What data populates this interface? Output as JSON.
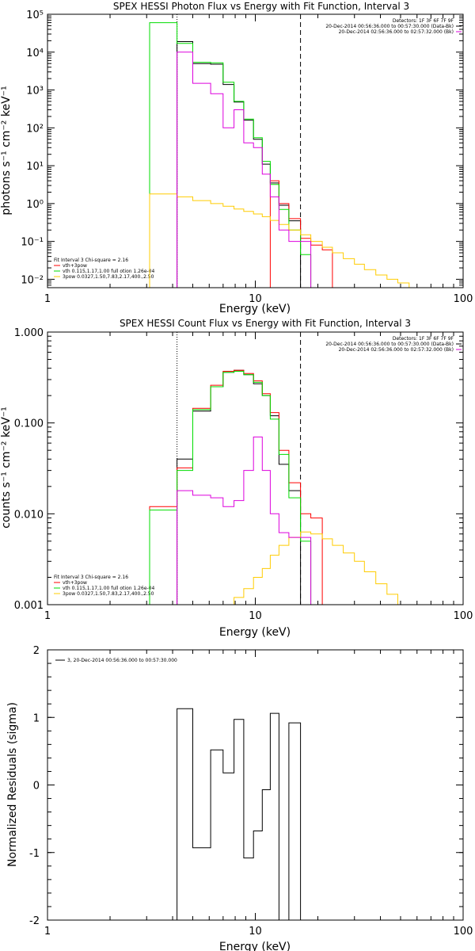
{
  "chart_data": [
    {
      "type": "line",
      "title": "SPEX HESSI Photon Flux vs Energy with Fit Function, Interval 3",
      "xlabel": "Energy (keV)",
      "ylabel": "photons s⁻¹ cm⁻² keV⁻¹",
      "xlog": true,
      "ylog": true,
      "xlim": [
        1,
        100
      ],
      "ylim": [
        0.006,
        100000
      ],
      "xtick_labels": [
        "1",
        "10",
        "100"
      ],
      "ytick_labels": [
        "10⁻²",
        "10⁻¹",
        "10⁰",
        "10¹",
        "10²",
        "10³",
        "10⁴",
        "10⁵"
      ],
      "header_lines": [
        "Detectors: 1F 3F 6F 7F 9F",
        "20-Dec-2014 00:56:36.000 to 00:57:30.000 (Data-Bk)",
        "20-Dec-2014 02:56:36.000 to 02:57:32.000 (Bk)"
      ],
      "fit_lines": [
        "Fit Interval 3   Chi-square = 2.16",
        "vth+3pow",
        "vth 0.115,1.17,1.00  full otion 1.26e-04",
        "3pow 0.0327,1.50,7.83,2.17,400.,2.50"
      ],
      "vlines": [
        {
          "x": 4.2,
          "style": "dotted",
          "color": "#000000"
        },
        {
          "x": 16.5,
          "style": "dashed",
          "color": "#000000"
        }
      ],
      "edges": [
        3.1,
        4.2,
        5.0,
        6.1,
        7.0,
        7.9,
        8.8,
        9.8,
        10.8,
        11.8,
        13.0,
        14.5,
        16.5,
        18.5,
        21.0,
        23.5,
        26.5,
        30.0,
        33.5,
        38.0,
        43.0,
        48.5,
        55.0
      ],
      "series": [
        {
          "name": "Data-Bk",
          "color": "#000000",
          "values": [
            null,
            19000,
            5000,
            4800,
            1400,
            480,
            160,
            50,
            11,
            3.5,
            0.9,
            0.35
          ]
        },
        {
          "name": "vth+3pow",
          "color": "#ff0000",
          "values": [
            null,
            null,
            null,
            null,
            null,
            null,
            null,
            null,
            null,
            4.0,
            1.0,
            0.4,
            0.12,
            0.08,
            0.06
          ]
        },
        {
          "name": "vth",
          "color": "#00dd00",
          "values": [
            60000,
            17000,
            5400,
            5200,
            1600,
            500,
            170,
            55,
            13,
            3.2,
            0.7,
            0.2,
            0.045
          ]
        },
        {
          "name": "3pow",
          "color": "#ffcc00",
          "values": [
            1.8,
            1.5,
            1.2,
            1.0,
            0.85,
            0.72,
            0.62,
            0.53,
            0.45,
            0.36,
            0.28,
            0.2,
            0.15,
            0.1,
            0.07,
            0.05,
            0.035,
            0.025,
            0.018,
            0.013,
            0.01,
            0.008
          ]
        },
        {
          "name": "Bk",
          "color": "#dd00dd",
          "values": [
            null,
            10000,
            1500,
            800,
            100,
            300,
            40,
            30,
            6,
            1.5,
            0.2,
            0.1,
            0.1
          ]
        }
      ]
    },
    {
      "type": "line",
      "title": "SPEX HESSI Count Flux vs Energy with Fit Function, Interval 3",
      "xlabel": "Energy (keV)",
      "ylabel": "counts s⁻¹ cm⁻² keV⁻¹",
      "xlog": true,
      "ylog": true,
      "xlim": [
        1,
        100
      ],
      "ylim": [
        0.001,
        1.0
      ],
      "xtick_labels": [
        "1",
        "10",
        "100"
      ],
      "ytick_labels": [
        "0.001",
        "0.010",
        "0.100",
        "1.000"
      ],
      "header_lines": [
        "Detectors: 1F 3F 6F 7F 9F",
        "20-Dec-2014 00:56:36.000 to 00:57:30.000 (Data-Bk)",
        "20-Dec-2014 02:56:36.000 to 02:57:32.000 (Bk)"
      ],
      "fit_lines": [
        "Fit Interval 3   Chi-square = 2.16",
        "vth+3pow",
        "vth 0.115,1.17,1.00  full otion 1.26e-04",
        "3pow 0.0327,1.50,7.83,2.17,400.,2.50"
      ],
      "vlines": [
        {
          "x": 4.2,
          "style": "dotted",
          "color": "#000000"
        },
        {
          "x": 16.5,
          "style": "dashed",
          "color": "#000000"
        }
      ],
      "edges": [
        3.1,
        4.2,
        5.0,
        6.1,
        7.0,
        7.9,
        8.8,
        9.8,
        10.8,
        11.8,
        13.0,
        14.5,
        16.5,
        18.5,
        21.0,
        23.5,
        26.5,
        30.0,
        33.5,
        38.0,
        43.0,
        48.5,
        55.0,
        62.0
      ],
      "series": [
        {
          "name": "Data-Bk",
          "color": "#000000",
          "values": [
            null,
            0.04,
            0.135,
            0.25,
            0.36,
            0.38,
            0.34,
            0.27,
            0.2,
            0.12,
            0.035,
            0.018
          ]
        },
        {
          "name": "vth+3pow",
          "color": "#ff0000",
          "values": [
            0.012,
            0.032,
            0.145,
            0.26,
            0.37,
            0.38,
            0.35,
            0.29,
            0.21,
            0.13,
            0.05,
            0.022,
            0.01,
            0.009
          ]
        },
        {
          "name": "vth",
          "color": "#00dd00",
          "values": [
            0.011,
            0.03,
            0.14,
            0.25,
            0.36,
            0.37,
            0.34,
            0.28,
            0.2,
            0.11,
            0.045,
            0.015,
            0.005
          ]
        },
        {
          "name": "3pow",
          "color": "#ffcc00",
          "values": [
            null,
            null,
            null,
            null,
            0.001,
            0.0012,
            0.0015,
            0.002,
            0.0025,
            0.0035,
            0.0045,
            0.0055,
            0.0063,
            0.006,
            0.0053,
            0.0045,
            0.0037,
            0.003,
            0.0023,
            0.0017,
            0.0013,
            0.001
          ]
        },
        {
          "name": "Bk",
          "color": "#dd00dd",
          "values": [
            null,
            0.018,
            0.016,
            0.015,
            0.012,
            0.014,
            0.03,
            0.07,
            0.03,
            0.01,
            0.0062,
            0.0055,
            0.0055
          ]
        }
      ]
    },
    {
      "type": "line",
      "title": "",
      "xlabel": "Energy (keV)",
      "ylabel": "Normalized Residuals (sigma)",
      "xlog": true,
      "xlim": [
        1,
        100
      ],
      "ylim": [
        -2,
        2
      ],
      "xtick_labels": [
        "1",
        "10",
        "100"
      ],
      "ytick_labels": [
        "-2",
        "-1",
        "0",
        "1",
        "2"
      ],
      "legend": "3, 20-Dec-2014 00:56:36.000 to 00:57:30.000",
      "edges": [
        4.2,
        5.0,
        6.1,
        7.0,
        7.9,
        8.8,
        9.8,
        10.8,
        11.8,
        13.0,
        14.5,
        16.5
      ],
      "series": [
        {
          "name": "3, 20-Dec-2014 00:56:36.000 to 00:57:30.000",
          "color": "#000000",
          "values": [
            1.13,
            -0.93,
            0.52,
            0.18,
            0.97,
            -1.08,
            -0.68,
            -0.07,
            1.06,
            -2.05,
            0.92
          ]
        }
      ]
    }
  ]
}
